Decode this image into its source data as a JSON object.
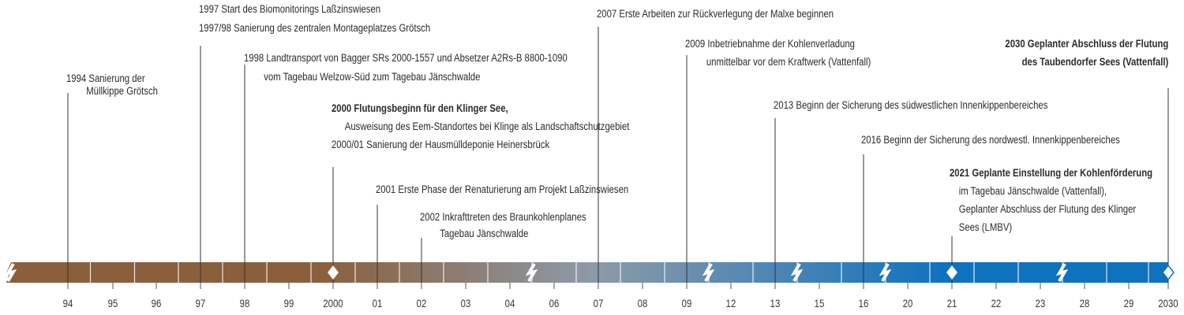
{
  "colors": {
    "bar_start": "#8a5f3c",
    "bar_mid": "#8e9aa8",
    "bar_end": "#0e72bf",
    "marker_fill": "#ffffff",
    "line": "#333333"
  },
  "ticks": [
    "94",
    "95",
    "96",
    "97",
    "98",
    "99",
    "2000",
    "01",
    "02",
    "03",
    "04",
    "06",
    "07",
    "08",
    "09",
    "12",
    "13",
    "15",
    "16",
    "20",
    "21",
    "22",
    "23",
    "28",
    "29",
    "2030"
  ],
  "events": [
    {
      "id": "e1994",
      "lines": [
        {
          "t": "1994 Sanierung der",
          "b": false,
          "i": false
        },
        {
          "t": "Müllkippe Grötsch",
          "b": false,
          "i": true
        }
      ]
    },
    {
      "id": "e1997",
      "lines": [
        {
          "t": "1997 Start des Biomonitorings Laßzinswiesen",
          "b": false,
          "i": false
        },
        {
          "t": "1997/98 Sanierung des zentralen Montageplatzes Grötsch",
          "b": false,
          "i": false
        }
      ]
    },
    {
      "id": "e1998",
      "lines": [
        {
          "t": "1998 Landtransport von Bagger SRs 2000-1557 und Absetzer A2Rs-B 8800-1090",
          "b": false,
          "i": false
        },
        {
          "t": "vom Tagebau Welzow-Süd zum Tagebau Jänschwalde",
          "b": false,
          "i": true
        }
      ]
    },
    {
      "id": "e2000",
      "lines": [
        {
          "t": "2000 Flutungsbeginn für den Klinger See,",
          "b": true,
          "i": false
        },
        {
          "t": "Ausweisung des Eem-Standortes bei Klinge als Landschaftschutzgebiet",
          "b": false,
          "i": true
        },
        {
          "t": "2000/01 Sanierung der Hausmülldeponie Heinersbrück",
          "b": false,
          "i": false
        }
      ]
    },
    {
      "id": "e2001",
      "lines": [
        {
          "t": "2001 Erste Phase der Renaturierung am Projekt Laßzinswiesen",
          "b": false,
          "i": false
        }
      ]
    },
    {
      "id": "e2002",
      "lines": [
        {
          "t": "2002 Inkrafttreten des Braunkohlenplanes",
          "b": false,
          "i": false
        },
        {
          "t": "Tagebau Jänschwalde",
          "b": false,
          "i": true
        }
      ]
    },
    {
      "id": "e2007",
      "lines": [
        {
          "t": "2007 Erste Arbeiten zur Rückverlegung der Malxe beginnen",
          "b": false,
          "i": false
        }
      ]
    },
    {
      "id": "e2009",
      "lines": [
        {
          "t": "2009 Inbetriebnahme der Kohlenverladung",
          "b": false,
          "i": false
        },
        {
          "t": "unmittelbar vor dem Kraftwerk (Vattenfall)",
          "b": false,
          "i": true
        }
      ]
    },
    {
      "id": "e2013",
      "lines": [
        {
          "t": "2013 Beginn der Sicherung des südwestlichen Innenkippenbereiches",
          "b": false,
          "i": false
        }
      ]
    },
    {
      "id": "e2016",
      "lines": [
        {
          "t": "2016 Beginn der Sicherung des nordwestl. Innenkippenbereiches",
          "b": false,
          "i": false
        }
      ]
    },
    {
      "id": "e2021",
      "lines": [
        {
          "t": "2021 Geplante Einstellung der Kohlenförderung",
          "b": true,
          "i": false
        },
        {
          "t": "im Tagebau Jänschwalde (Vattenfall),",
          "b": false,
          "i": true
        },
        {
          "t": "Geplanter Abschluss der Flutung des Klinger",
          "b": false,
          "i": true
        },
        {
          "t": "Sees (LMBV)",
          "b": false,
          "i": true
        }
      ]
    },
    {
      "id": "e2030",
      "lines": [
        {
          "t": "2030 Geplanter Abschluss der Flutung",
          "b": true,
          "i": false
        },
        {
          "t": "des Taubendorfer Sees (Vattenfall)",
          "b": true,
          "i": false
        }
      ]
    }
  ]
}
